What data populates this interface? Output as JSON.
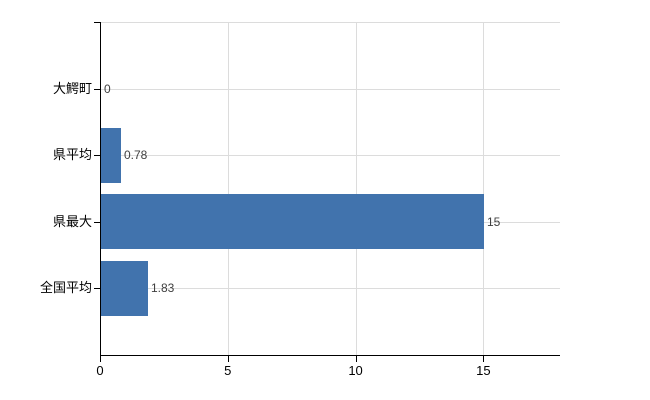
{
  "chart_data": {
    "type": "bar",
    "orientation": "horizontal",
    "title": "",
    "xlabel": "",
    "ylabel": "",
    "categories": [
      "大鰐町",
      "県平均",
      "県最大",
      "全国平均"
    ],
    "values": [
      0,
      0.78,
      15,
      1.83
    ],
    "value_labels": [
      "0",
      "0.78",
      "15",
      "1.83"
    ],
    "x_ticks": [
      0,
      5,
      10,
      15
    ],
    "x_tick_labels": [
      "0",
      "5",
      "10",
      "15"
    ],
    "xlim": [
      0,
      18
    ],
    "grid": true,
    "legend_position": "none",
    "colors": {
      "bar": "#4173ad",
      "grid": "#dcdcdc",
      "axis": "#000000",
      "value_label": "#404040",
      "tick_label": "#000000",
      "background": "#ffffff"
    }
  }
}
